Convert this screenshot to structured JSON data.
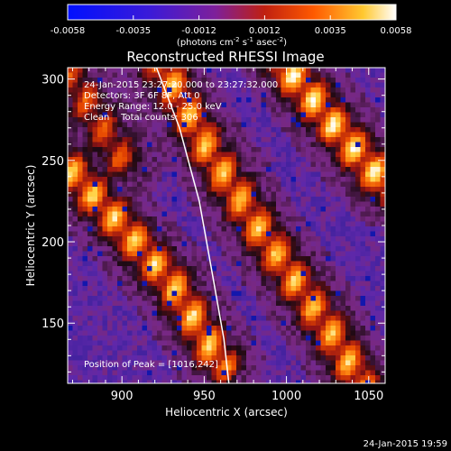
{
  "chart_data": {
    "type": "heatmap",
    "title": "Reconstructed RHESSI Image",
    "xlabel": "Heliocentric X (arcsec)",
    "ylabel": "Heliocentric Y (arcsec)",
    "xlim": [
      867,
      1060
    ],
    "ylim": [
      113,
      307
    ],
    "xticks": [
      900,
      950,
      1000,
      1050
    ],
    "yticks": [
      150,
      200,
      250,
      300
    ],
    "colorbar": {
      "min": -0.0058,
      "max": 0.0058,
      "ticks": [
        "-0.0058",
        "-0.0035",
        "-0.0012",
        "0.0012",
        "0.0035",
        "0.0058"
      ],
      "unit_label": "(photons cm",
      "unit_sup1": "-2",
      "unit_mid": " s",
      "unit_sup2": "-1",
      "unit_end": " asec",
      "unit_sup3": "-2",
      "unit_close": ")"
    },
    "annotations": {
      "time_range": "24-Jan-2015 23:27:20.000 to 23:27:32.000",
      "detectors": "Detectors: 3F 6F 8F, Att 0",
      "energy": "Energy Range: 12.0 - 25.0 keV",
      "method": "Clean    Total counts: 306",
      "peak": "Position of Peak = [1016,242]"
    },
    "limb": {
      "points": [
        [
          921,
          307
        ],
        [
          935,
          270
        ],
        [
          947,
          225
        ],
        [
          955,
          180
        ],
        [
          962,
          140
        ],
        [
          965,
          113
        ]
      ]
    },
    "ridges": [
      {
        "points": [
          [
            867,
            245
          ],
          [
            895,
            215
          ],
          [
            930,
            175
          ],
          [
            960,
            125
          ]
        ],
        "peak": 0.9
      },
      {
        "points": [
          [
            925,
            307
          ],
          [
            950,
            260
          ],
          [
            985,
            205
          ],
          [
            1030,
            140
          ],
          [
            1045,
            113
          ]
        ],
        "peak": 0.85
      },
      {
        "points": [
          [
            1000,
            307
          ],
          [
            1030,
            270
          ],
          [
            1060,
            235
          ]
        ],
        "peak": 1.0
      },
      {
        "points": [
          [
            870,
            300
          ],
          [
            900,
            250
          ]
        ],
        "peak": 0.55
      }
    ],
    "footer": "24-Jan-2015 19:59"
  }
}
